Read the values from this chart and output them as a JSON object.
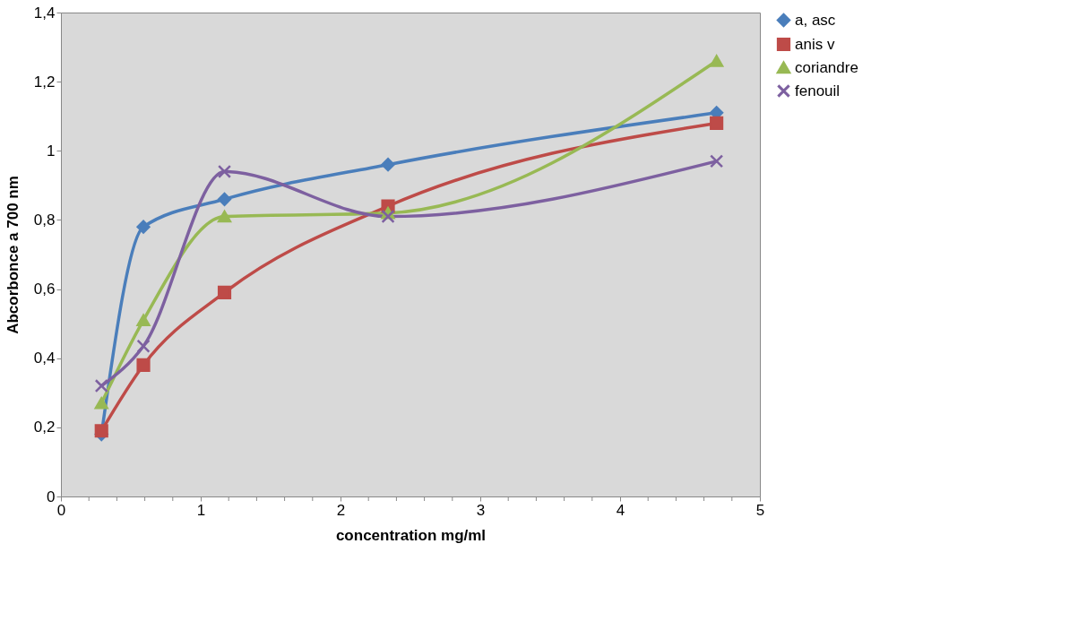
{
  "chart_data": {
    "type": "line",
    "xlabel": "concentration mg/ml",
    "ylabel": "Abcorbonce a 700 nm",
    "x": [
      0.29,
      0.59,
      1.17,
      2.34,
      4.69
    ],
    "series": [
      {
        "name": "a, asc",
        "color": "#4a7ebb",
        "marker": "diamond",
        "values": [
          0.18,
          0.78,
          0.86,
          0.96,
          1.11
        ]
      },
      {
        "name": "anis v",
        "color": "#be4b48",
        "marker": "square",
        "values": [
          0.19,
          0.38,
          0.59,
          0.84,
          1.08
        ]
      },
      {
        "name": "coriandre",
        "color": "#98b954",
        "marker": "triangle",
        "values": [
          0.27,
          0.51,
          0.81,
          0.82,
          1.26
        ]
      },
      {
        "name": "fenouil",
        "color": "#7d60a0",
        "marker": "cross",
        "values": [
          0.32,
          0.435,
          0.94,
          0.81,
          0.97
        ]
      }
    ],
    "xlim": [
      0,
      5
    ],
    "xticks": [
      0,
      {
        "value": 0.2,
        "label": null
      },
      {
        "value": 0.4,
        "label": null
      },
      {
        "value": 0.6,
        "label": null
      },
      {
        "value": 0.8,
        "label": null
      },
      1,
      {
        "value": 1.2,
        "label": null
      },
      {
        "value": 1.4,
        "label": null
      },
      {
        "value": 1.6,
        "label": null
      },
      {
        "value": 1.8,
        "label": null
      },
      2,
      {
        "value": 2.2,
        "label": null
      },
      {
        "value": 2.4,
        "label": null
      },
      {
        "value": 2.6,
        "label": null
      },
      {
        "value": 2.8,
        "label": null
      },
      3,
      {
        "value": 3.2,
        "label": null
      },
      {
        "value": 3.4,
        "label": null
      },
      {
        "value": 3.6,
        "label": null
      },
      {
        "value": 3.8,
        "label": null
      },
      4,
      {
        "value": 4.2,
        "label": null
      },
      {
        "value": 4.4,
        "label": null
      },
      {
        "value": 4.6,
        "label": null
      },
      {
        "value": 4.8,
        "label": null
      },
      5
    ],
    "ylim": [
      0,
      1.4
    ],
    "yticks": [
      0,
      {
        "value": 0.2,
        "label": "0,2"
      },
      {
        "value": 0.4,
        "label": "0,4"
      },
      {
        "value": 0.6,
        "label": "0,6"
      },
      {
        "value": 0.8,
        "label": "0,8"
      },
      1,
      {
        "value": 1.2,
        "label": "1,2"
      },
      {
        "value": 1.4,
        "label": "1,4"
      }
    ],
    "grid": false,
    "legend": "right",
    "line_style": "solid"
  }
}
